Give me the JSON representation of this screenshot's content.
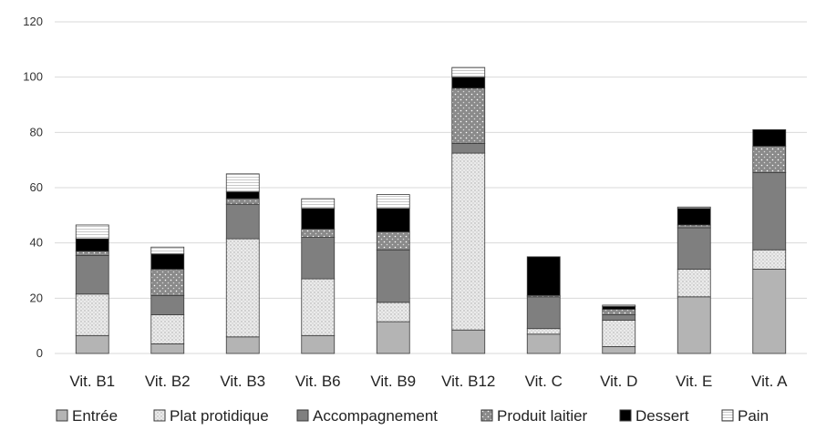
{
  "chart_data": {
    "type": "bar",
    "stacked": true,
    "categories": [
      "Vit. B1",
      "Vit. B2",
      "Vit. B3",
      "Vit. B6",
      "Vit. B9",
      "Vit. B12",
      "Vit. C",
      "Vit. D",
      "Vit. E",
      "Vit. A"
    ],
    "series": [
      {
        "name": "Entrée",
        "values": [
          6.5,
          3.5,
          6,
          6.5,
          11.5,
          8.5,
          7,
          2.5,
          20.5,
          30.5
        ],
        "color": "#b4b4b4",
        "pattern": "solid"
      },
      {
        "name": "Plat protidique",
        "values": [
          15,
          10.5,
          35.5,
          20.5,
          7,
          64,
          2,
          9.5,
          10,
          7
        ],
        "color": "#e9e9e9",
        "pattern": "dots"
      },
      {
        "name": "Accompagnement",
        "values": [
          14,
          7,
          12.5,
          15,
          19,
          3.5,
          11.5,
          2,
          15,
          28
        ],
        "color": "#7f7f7f",
        "pattern": "solid"
      },
      {
        "name": "Produit laitier",
        "values": [
          1.5,
          9.5,
          2,
          3,
          6.5,
          20,
          0.5,
          2,
          1,
          9.5
        ],
        "color": "#8c8c8c",
        "pattern": "dots"
      },
      {
        "name": "Dessert",
        "values": [
          4.5,
          5.5,
          2.5,
          7.5,
          8.5,
          4,
          14,
          1,
          6,
          6
        ],
        "color": "#000000",
        "pattern": "solid"
      },
      {
        "name": "Pain",
        "values": [
          5,
          2.5,
          6.5,
          3.5,
          5,
          3.5,
          0,
          0.5,
          0.5,
          0
        ],
        "color": "#f7f7f7",
        "pattern": "stripes"
      }
    ],
    "ylim": [
      0,
      120
    ],
    "yticks": [
      "0",
      "20",
      "40",
      "60",
      "80",
      "100",
      "120"
    ],
    "grid": true,
    "legend_position": "bottom",
    "title": "",
    "xlabel": "",
    "ylabel": ""
  }
}
